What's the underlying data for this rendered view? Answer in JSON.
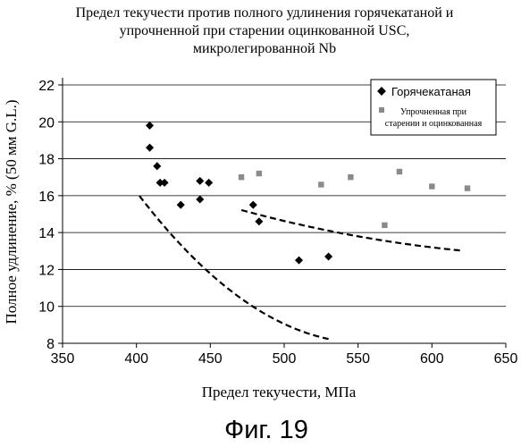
{
  "chart_data": {
    "type": "scatter",
    "title_lines": [
      "Предел текучести против полного удлинения горячекатаной и",
      "упрочненной при старении оцинкованной USC,",
      "микролегированной Nb"
    ],
    "xlabel": "Предел текучести, МПа",
    "ylabel": "Полное удлинение, % (50 мм G.L.)",
    "xlim": [
      350,
      650
    ],
    "ylim": [
      8,
      22
    ],
    "xticks": [
      350,
      400,
      450,
      500,
      550,
      600,
      650
    ],
    "yticks": [
      8,
      10,
      12,
      14,
      16,
      18,
      20,
      22
    ],
    "grid": "horizontal",
    "legend_position": "top-right",
    "series": [
      {
        "name": "Горячекатаная",
        "marker": "diamond",
        "color": "#000000",
        "points": [
          [
            409,
            19.8
          ],
          [
            409,
            18.6
          ],
          [
            414,
            17.6
          ],
          [
            416,
            16.7
          ],
          [
            419,
            16.7
          ],
          [
            430,
            15.5
          ],
          [
            443,
            16.8
          ],
          [
            443,
            15.8
          ],
          [
            449,
            16.7
          ],
          [
            479,
            15.5
          ],
          [
            483,
            14.6
          ],
          [
            510,
            12.5
          ],
          [
            530,
            12.7
          ]
        ],
        "trend": {
          "x_range": [
            402,
            530
          ],
          "coeffs": [
            113.0,
            -0.3784,
            0.000341
          ]
        }
      },
      {
        "name_lines": [
          "Упрочненная при",
          "старении и оцинкованная"
        ],
        "marker": "square",
        "color": "#8a8a8a",
        "points": [
          [
            471,
            17.0
          ],
          [
            483,
            17.2
          ],
          [
            525,
            16.6
          ],
          [
            545,
            17.0
          ],
          [
            568,
            14.4
          ],
          [
            578,
            17.3
          ],
          [
            600,
            16.5
          ],
          [
            624,
            16.4
          ]
        ],
        "trend": {
          "x_range": [
            471,
            620
          ],
          "coeffs": [
            35.83,
            -0.0658,
            4.68e-05
          ]
        }
      }
    ]
  },
  "caption": "Фиг. 19"
}
